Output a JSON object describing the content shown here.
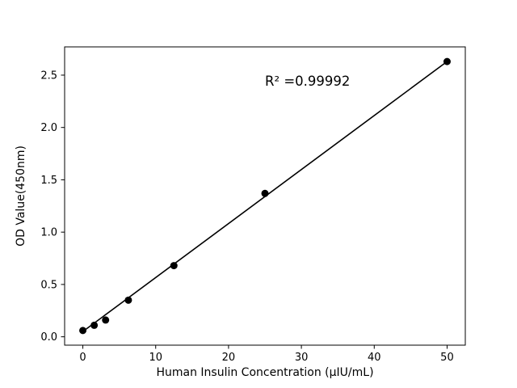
{
  "chart_data": {
    "type": "scatter",
    "title": "",
    "xlabel": "Human Insulin Concentration (μIU/mL)",
    "ylabel": "OD Value(450nm)",
    "x": [
      0,
      1.5625,
      3.125,
      6.25,
      12.5,
      25,
      50
    ],
    "y": [
      0.06,
      0.11,
      0.16,
      0.35,
      0.68,
      1.37,
      2.63
    ],
    "fit_line": {
      "x1": 0,
      "y1": 0.05,
      "x2": 50,
      "y2": 2.63
    },
    "annotation": {
      "text": "R² =0.99992",
      "x": 25,
      "y": 2.4
    },
    "xlim": [
      -2.5,
      52.5
    ],
    "ylim": [
      -0.08,
      2.77
    ],
    "xticks": {
      "values": [
        0,
        10,
        20,
        30,
        40,
        50
      ],
      "labels": [
        "0",
        "10",
        "20",
        "30",
        "40",
        "50"
      ]
    },
    "yticks": {
      "values": [
        0,
        0.5,
        1.0,
        1.5,
        2.0,
        2.5
      ],
      "labels": [
        "0.0",
        "0.5",
        "1.0",
        "1.5",
        "2.0",
        "2.5"
      ]
    },
    "marker_color": "#000000",
    "line_color": "#000000",
    "background": "#ffffff",
    "grid": false,
    "legend": null
  }
}
